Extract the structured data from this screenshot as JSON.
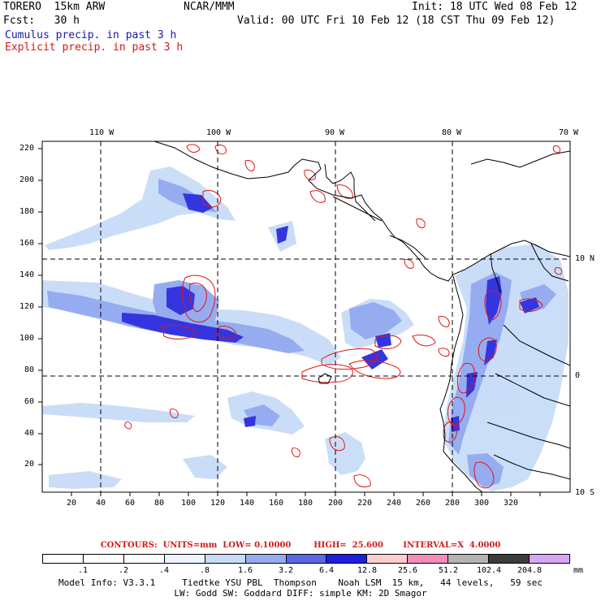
{
  "header": {
    "model": "TORERO  15km ARW",
    "org": "NCAR/MMM",
    "init": "Init: 18 UTC Wed 08 Feb 12",
    "fcst": "Fcst:   30 h",
    "valid": "Valid: 00 UTC Fri 10 Feb 12 (18 CST Thu 09 Feb 12)",
    "cumulus": "Cumulus precip. in past 3 h",
    "explicit": "Explicit precip. in past 3 h"
  },
  "axes": {
    "lon_labels": [
      "110 W",
      "100 W",
      "90 W",
      "80 W",
      "70 W"
    ],
    "lat_labels": [
      "10 N",
      "0",
      "10 S"
    ],
    "x_ticks": [
      "20",
      "40",
      "60",
      "80",
      "100",
      "120",
      "140",
      "160",
      "180",
      "200",
      "220",
      "240",
      "260",
      "280",
      "300",
      "320"
    ],
    "y_ticks": [
      "20",
      "40",
      "60",
      "80",
      "100",
      "120",
      "140",
      "160",
      "180",
      "200",
      "220"
    ]
  },
  "contours_caption": "CONTOURS:  UNITS=mm  LOW= 0.10000        HIGH=  25.600       INTERVAL=X  4.0000",
  "legend": {
    "labels": [
      ".1",
      ".2",
      ".4",
      ".8",
      "1.6",
      "3.2",
      "6.4",
      "12.8",
      "25.6",
      "51.2",
      "102.4",
      "204.8"
    ],
    "unit": "mm",
    "colors": [
      "#ffffff",
      "#ffffff",
      "#ffffff",
      "#eef4ff",
      "#c8dcf8",
      "#96acf0",
      "#5a68e8",
      "#1e1ee0",
      "#fbcfcf",
      "#f28cb8",
      "#b4b4b4",
      "#3c3c3c",
      "#d6a6f2"
    ]
  },
  "model_info": {
    "line1": "Model Info: V3.3.1     Tiedtke YSU PBL  Thompson    Noah LSM  15 km,   44 levels,   59 sec",
    "line2": "LW: Godd SW: Goddard DIFF: simple KM: 2D Smagor"
  },
  "colors": {
    "cumulus_blue": "#1a1aa6",
    "explicit_red": "#d21a1a"
  }
}
